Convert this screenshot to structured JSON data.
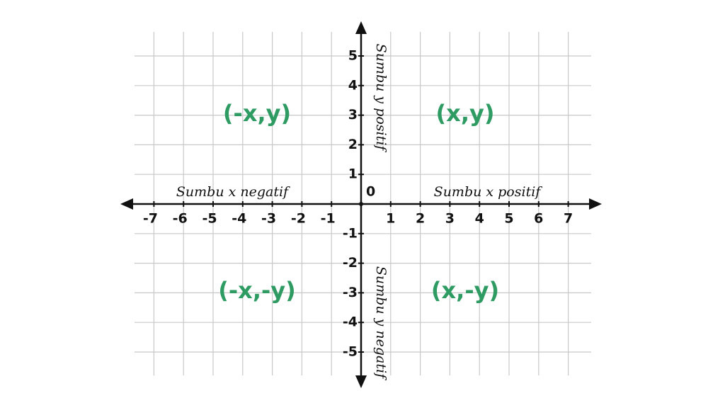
{
  "origin": "0",
  "x_axis": {
    "ticks": [
      -7,
      -6,
      -5,
      -4,
      -3,
      -2,
      -1,
      1,
      2,
      3,
      4,
      5,
      6,
      7
    ],
    "negative_label": "Sumbu x negatif",
    "positive_label": "Sumbu x positif"
  },
  "y_axis": {
    "ticks": [
      -5,
      -4,
      -3,
      -2,
      -1,
      1,
      2,
      3,
      4,
      5
    ],
    "positive_label": "Sumbu y positif",
    "negative_label": "Sumbu y negatif"
  },
  "quadrants": [
    {
      "label": "(-x,y)"
    },
    {
      "label": "(x,y)"
    },
    {
      "label": "(-x,-y)"
    },
    {
      "label": "(x,-y)"
    }
  ]
}
